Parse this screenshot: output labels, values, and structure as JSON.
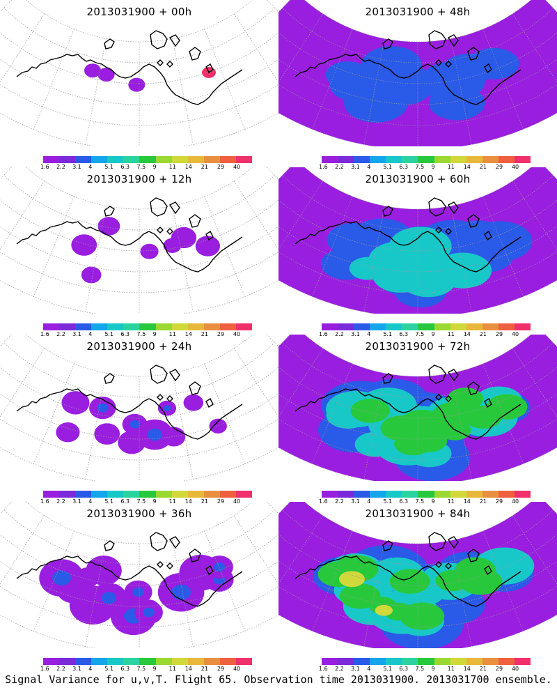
{
  "palette": [
    "#9a1ee0",
    "#7a2ad8",
    "#2a5ae8",
    "#14a6ea",
    "#18c8c8",
    "#2ad3a0",
    "#28c83c",
    "#9ad832",
    "#d0d83a",
    "#e8b83a",
    "#e89040",
    "#ef6040",
    "#f0306a"
  ],
  "legend_labels": [
    "1.6",
    "2.2",
    "3.1",
    "4",
    "5.1",
    "6.3",
    "7.5",
    "9",
    "11",
    "14",
    "21",
    "29",
    "40"
  ],
  "panels": [
    {
      "title": "2013031900 + 00h",
      "level": 0
    },
    {
      "title": "2013031900 + 48h",
      "level": 4
    },
    {
      "title": "2013031900 + 12h",
      "level": 1
    },
    {
      "title": "2013031900 + 60h",
      "level": 5
    },
    {
      "title": "2013031900 + 24h",
      "level": 2
    },
    {
      "title": "2013031900 + 72h",
      "level": 6
    },
    {
      "title": "2013031900 + 36h",
      "level": 3
    },
    {
      "title": "2013031900 + 84h",
      "level": 7
    }
  ],
  "footer": "Signal Variance for u,v,T. Flight 65. Observation time 2013031900. 2013031700 ensemble."
}
